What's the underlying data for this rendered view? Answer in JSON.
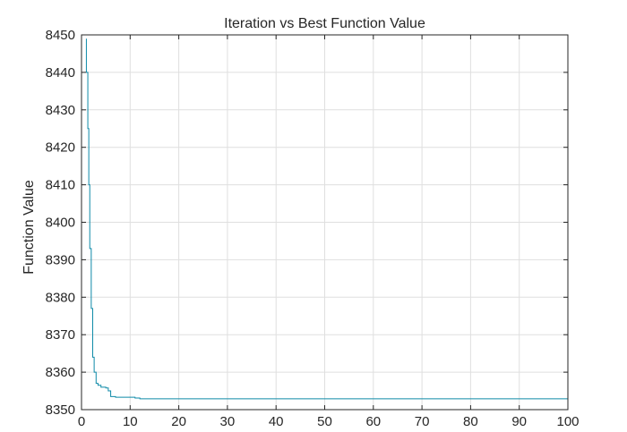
{
  "chart_data": {
    "type": "line",
    "title": "Iteration vs Best Function Value",
    "xlabel": "",
    "ylabel": "Function Value",
    "xlim": [
      0,
      100
    ],
    "ylim": [
      8350,
      8450
    ],
    "xticks": [
      0,
      10,
      20,
      30,
      40,
      50,
      60,
      70,
      80,
      90,
      100
    ],
    "yticks": [
      8350,
      8360,
      8370,
      8380,
      8390,
      8400,
      8410,
      8420,
      8430,
      8440,
      8450
    ],
    "xtick_labels": [
      "0",
      "10",
      "20",
      "30",
      "40",
      "50",
      "60",
      "70",
      "80",
      "90",
      "100"
    ],
    "ytick_labels": [
      "8350",
      "8360",
      "8370",
      "8380",
      "8390",
      "8400",
      "8410",
      "8420",
      "8430",
      "8440",
      "8450"
    ],
    "grid": true,
    "series": [
      {
        "color": "#0e8aa8",
        "x": [
          1,
          1,
          1.3,
          1.3,
          1.5,
          1.5,
          1.7,
          1.7,
          2,
          2,
          2.3,
          2.3,
          2.6,
          2.6,
          3,
          3,
          3.4,
          3.4,
          4,
          4,
          5,
          5,
          5.5,
          5.5,
          6,
          6,
          7,
          7,
          11,
          11,
          12,
          12,
          100
        ],
        "y": [
          8449,
          8440,
          8440,
          8425,
          8425,
          8410,
          8410,
          8393,
          8393,
          8377,
          8377,
          8364,
          8364,
          8360,
          8360,
          8357,
          8357,
          8356.5,
          8356.5,
          8356,
          8356,
          8355.8,
          8355.8,
          8355,
          8355,
          8353.5,
          8353.5,
          8353.3,
          8353.3,
          8353.1,
          8353.1,
          8352.9,
          8352.9
        ]
      }
    ]
  }
}
